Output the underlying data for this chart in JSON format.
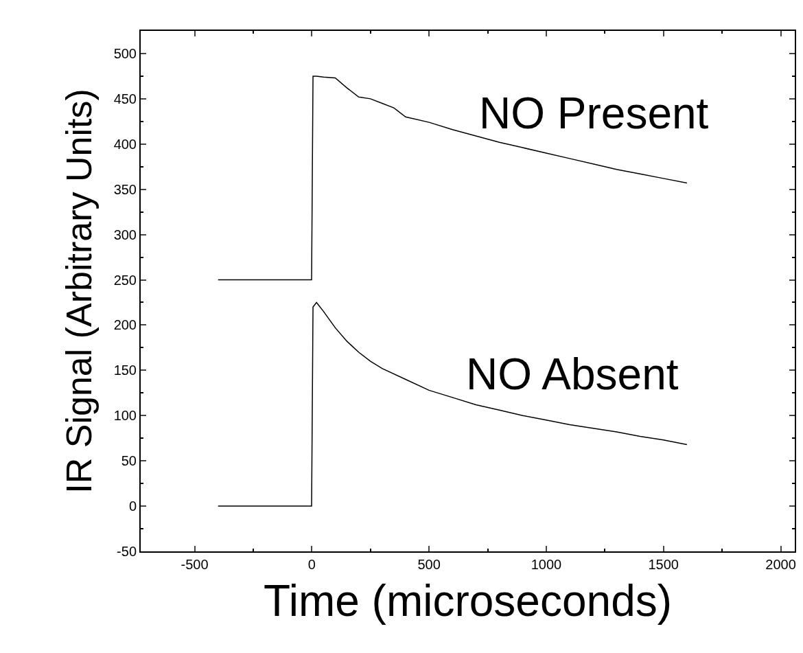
{
  "chart_data": {
    "type": "line",
    "xlabel": "Time (microseconds)",
    "ylabel": "IR Signal (Arbitrary Units)",
    "xlim": [
      -730,
      2060
    ],
    "ylim": [
      -50,
      525
    ],
    "xticks": [
      -500,
      0,
      500,
      1000,
      1500,
      2000
    ],
    "yticks": [
      -50,
      0,
      50,
      100,
      150,
      200,
      250,
      300,
      350,
      400,
      450,
      500
    ],
    "legend": false,
    "marker": "none",
    "line_style": "solid",
    "series": [
      {
        "name": "NO Present",
        "color": "#000000",
        "x": [
          -400,
          -300,
          -200,
          -100,
          -1,
          5,
          20,
          50,
          100,
          150,
          200,
          250,
          300,
          350,
          400,
          500,
          600,
          700,
          800,
          900,
          1000,
          1100,
          1200,
          1300,
          1400,
          1500,
          1600
        ],
        "values": [
          250,
          250,
          250,
          250,
          250,
          475,
          475,
          474,
          473,
          462,
          452,
          450,
          445,
          440,
          430,
          424,
          416,
          409,
          402,
          396,
          390,
          384,
          378,
          372,
          367,
          362,
          357
        ]
      },
      {
        "name": "NO Absent",
        "color": "#000000",
        "x": [
          -400,
          -300,
          -200,
          -100,
          -1,
          5,
          20,
          50,
          100,
          150,
          200,
          250,
          300,
          400,
          500,
          600,
          700,
          800,
          900,
          1000,
          1100,
          1200,
          1300,
          1400,
          1500,
          1600
        ],
        "values": [
          0,
          0,
          0,
          0,
          0,
          220,
          225,
          215,
          197,
          182,
          170,
          160,
          152,
          140,
          128,
          120,
          112,
          106,
          100,
          95,
          90,
          86,
          82,
          77,
          73,
          68
        ]
      }
    ]
  }
}
